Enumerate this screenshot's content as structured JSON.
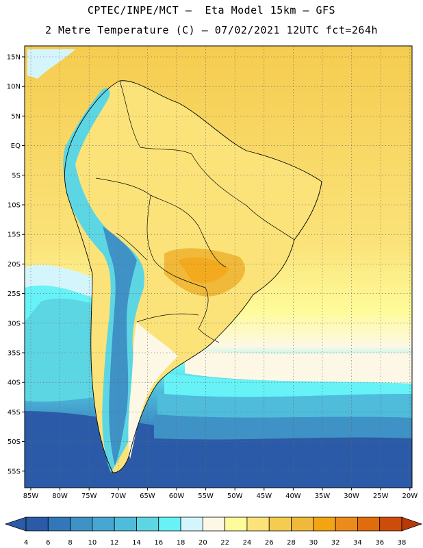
{
  "header": {
    "line1": "CPTEC/INPE/MCT –  Eta Model 15km – GFS",
    "line2": "2 Metre Temperature (C) – 07/02/2021 12UTC fct=264h"
  },
  "map": {
    "lat_labels": [
      "15N",
      "10N",
      "5N",
      "EQ",
      "5S",
      "10S",
      "15S",
      "20S",
      "25S",
      "30S",
      "35S",
      "40S",
      "45S",
      "50S",
      "55S"
    ],
    "lon_labels": [
      "85W",
      "80W",
      "75W",
      "70W",
      "65W",
      "60W",
      "55W",
      "50W",
      "45W",
      "40W",
      "35W",
      "30W",
      "25W",
      "20W"
    ]
  },
  "colorbar": {
    "labels": [
      "4",
      "6",
      "8",
      "10",
      "12",
      "14",
      "16",
      "18",
      "20",
      "22",
      "24",
      "26",
      "28",
      "30",
      "32",
      "34",
      "36",
      "38"
    ],
    "colors": [
      "#2b5ba8",
      "#3277ba",
      "#3e92c6",
      "#47a7d3",
      "#4fbcdb",
      "#5dd6e4",
      "#66f2f6",
      "#d5f5fc",
      "#fdf8e5",
      "#fefb9a",
      "#fbe37a",
      "#f5cc4f",
      "#f0b93a",
      "#f3a412",
      "#ed8a1c",
      "#e06c0c",
      "#cd4c0a",
      "#b93a06"
    ]
  }
}
